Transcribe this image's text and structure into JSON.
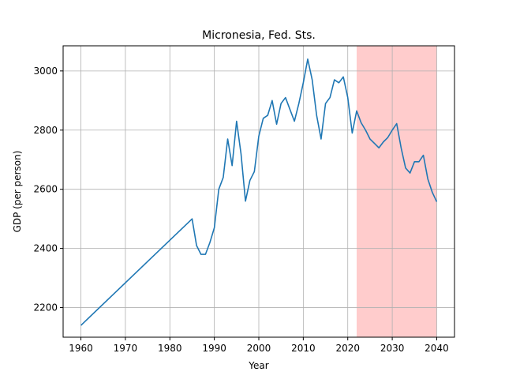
{
  "chart_data": {
    "type": "line",
    "title": "Micronesia, Fed. Sts.",
    "xlabel": "Year",
    "ylabel": "GDP (per person)",
    "xlim": [
      1956,
      2044
    ],
    "ylim": [
      2100,
      3085
    ],
    "xticks": [
      1960,
      1970,
      1980,
      1990,
      2000,
      2010,
      2020,
      2030,
      2040
    ],
    "yticks": [
      2200,
      2400,
      2600,
      2800,
      3000
    ],
    "grid": true,
    "shaded_region": {
      "x_start": 2022,
      "x_end": 2040,
      "color": "#ffcccc"
    },
    "series": [
      {
        "color": "#1f77b4",
        "x": [
          1960,
          1985,
          1986,
          1987,
          1988,
          1989,
          1990,
          1991,
          1992,
          1993,
          1994,
          1995,
          1996,
          1997,
          1998,
          1999,
          2000,
          2001,
          2002,
          2003,
          2004,
          2005,
          2006,
          2007,
          2008,
          2009,
          2010,
          2011,
          2012,
          2013,
          2014,
          2015,
          2016,
          2017,
          2018,
          2019,
          2020,
          2021,
          2022,
          2023,
          2024,
          2025,
          2026,
          2027,
          2028,
          2029,
          2030,
          2031,
          2032,
          2033,
          2034,
          2035,
          2036,
          2037,
          2038,
          2039,
          2040
        ],
        "values": [
          2140,
          2500,
          2410,
          2380,
          2380,
          2420,
          2470,
          2600,
          2640,
          2770,
          2680,
          2830,
          2720,
          2560,
          2630,
          2660,
          2780,
          2840,
          2850,
          2900,
          2820,
          2890,
          2910,
          2870,
          2830,
          2890,
          2960,
          3040,
          2970,
          2850,
          2770,
          2890,
          2910,
          2970,
          2960,
          2980,
          2910,
          2790,
          2865,
          2825,
          2800,
          2770,
          2755,
          2740,
          2760,
          2775,
          2800,
          2822,
          2740,
          2672,
          2655,
          2693,
          2693,
          2715,
          2635,
          2590,
          2558
        ]
      }
    ]
  }
}
